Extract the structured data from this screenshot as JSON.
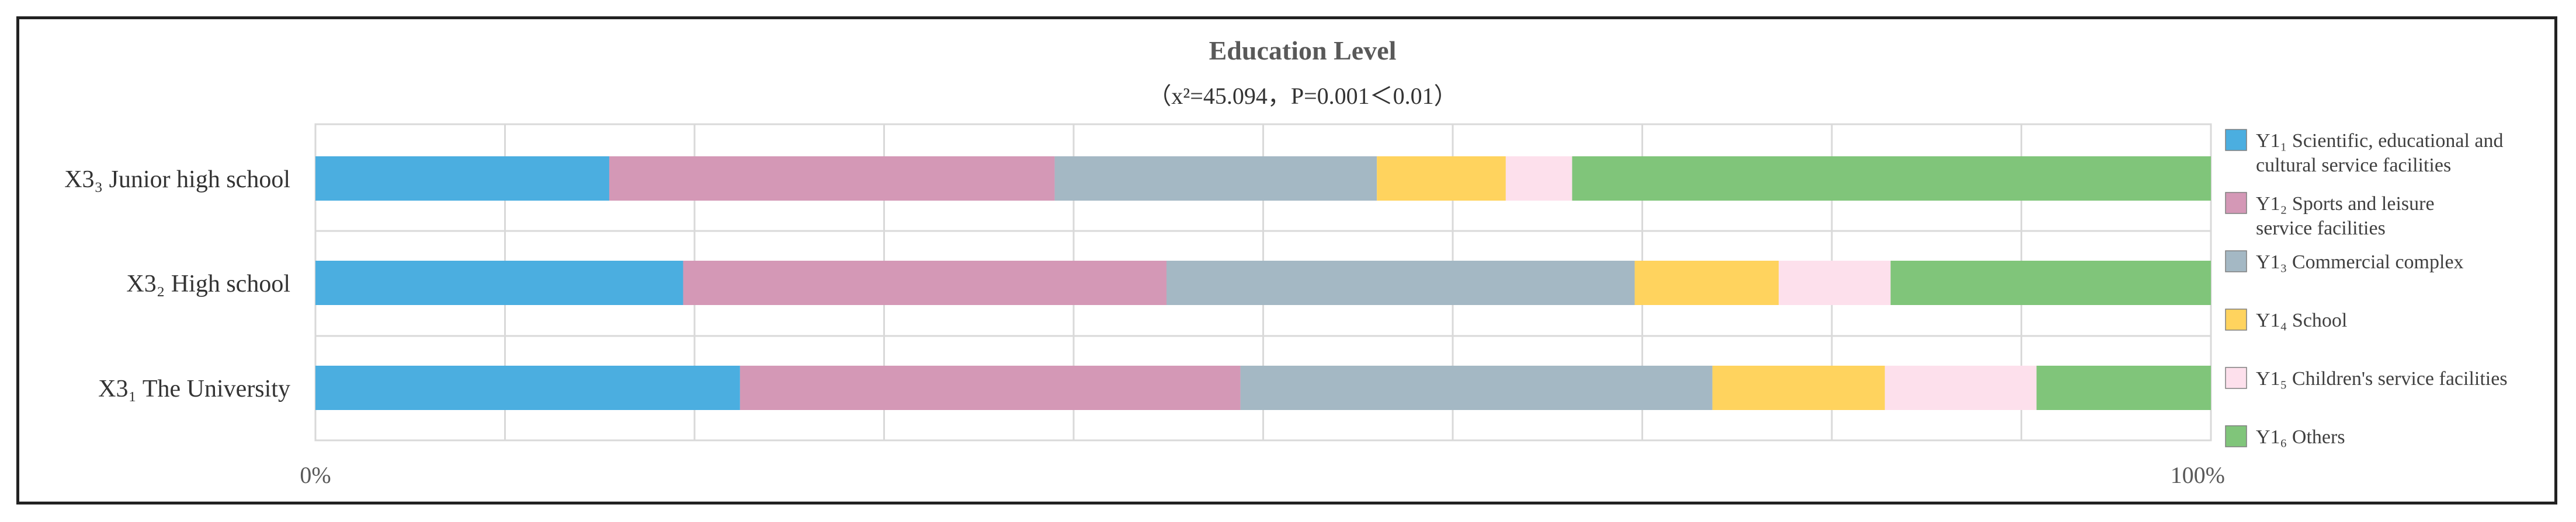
{
  "chart_data": {
    "type": "bar",
    "orientation": "horizontal",
    "stacked": "percent",
    "title": "Education Level",
    "subtitle": "（x²=45.094，P=0.001＜0.01）",
    "categories": [
      "X3₃ Junior high school",
      "X3₂ High school",
      "X3₁  The University"
    ],
    "series": [
      {
        "name": "Y1₁  Scientific, educational and cultural service facilities",
        "color": "#4baee0",
        "values": [
          15.5,
          19.4,
          22.4
        ]
      },
      {
        "name": "Y1₂  Sports and leisure service facilities",
        "color": "#d498b6",
        "values": [
          23.5,
          25.5,
          26.4
        ]
      },
      {
        "name": "Y1₃  Commercial complex",
        "color": "#a4b8c4",
        "values": [
          17.0,
          24.7,
          24.9
        ]
      },
      {
        "name": "Y1₄  School",
        "color": "#ffd35e",
        "values": [
          6.8,
          7.6,
          9.1
        ]
      },
      {
        "name": "Y1₅  Children's service facilities",
        "color": "#fde0ec",
        "values": [
          3.5,
          5.9,
          8.0
        ]
      },
      {
        "name": "Y1₆  Others",
        "color": "#80c57a",
        "values": [
          33.7,
          16.9,
          9.2
        ]
      }
    ],
    "xlim": [
      0,
      100
    ],
    "x_tick_labels": [
      "0%",
      "100%"
    ],
    "gridlines": [
      0,
      10,
      20,
      30,
      40,
      50,
      60,
      70,
      80,
      90,
      100
    ],
    "grid": true,
    "legend": "right"
  }
}
